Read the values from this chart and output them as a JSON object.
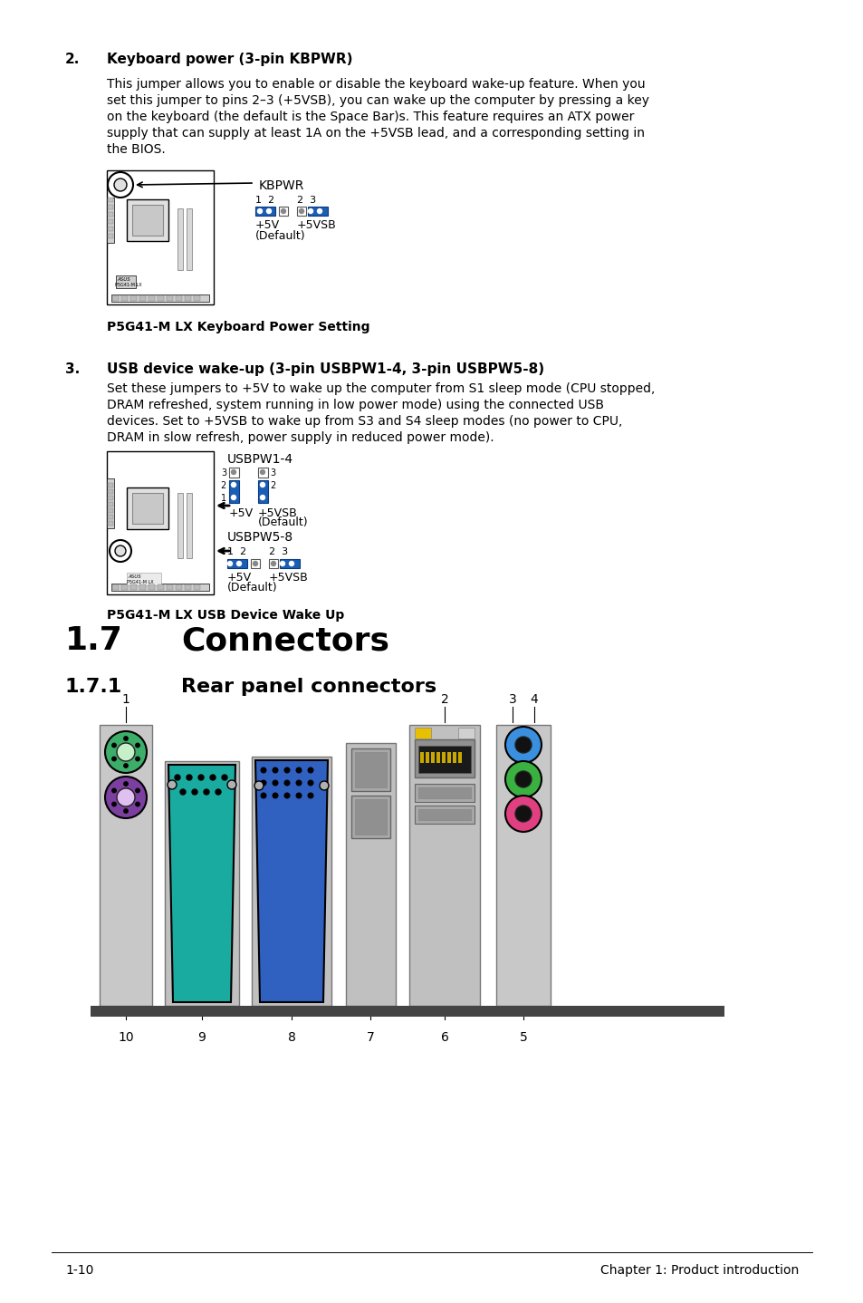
{
  "bg_color": "#ffffff",
  "section2_num": "2.",
  "section2_title": "Keyboard power (3-pin KBPWR)",
  "section2_body1": "This jumper allows you to enable or disable the keyboard wake-up feature. When you",
  "section2_body2": "set this jumper to pins 2–3 (+5VSB), you can wake up the computer by pressing a key",
  "section2_body3": "on the keyboard (the default is the Space Bar)s. This feature requires an ATX power",
  "section2_body4": "supply that can supply at least 1A on the +5VSB lead, and a corresponding setting in",
  "section2_body5": "the BIOS.",
  "section2_caption": "P5G41-M LX Keyboard Power Setting",
  "section3_num": "3.",
  "section3_title": "USB device wake-up (3-pin USBPW1-4, 3-pin USBPW5-8)",
  "section3_body1": "Set these jumpers to +5V to wake up the computer from S1 sleep mode (CPU stopped,",
  "section3_body2": "DRAM refreshed, system running in low power mode) using the connected USB",
  "section3_body3": "devices. Set to +5VSB to wake up from S3 and S4 sleep modes (no power to CPU,",
  "section3_body4": "DRAM in slow refresh, power supply in reduced power mode).",
  "section3_caption": "P5G41-M LX USB Device Wake Up",
  "section17_num": "1.7",
  "section17_title": "Connectors",
  "section171_num": "1.7.1",
  "section171_title": "Rear panel connectors",
  "footer_left": "1-10",
  "footer_right": "Chapter 1: Product introduction",
  "blue_jumper": "#1a5fb4",
  "ps2_green": "#3dae6a",
  "ps2_purple": "#7b3fa0",
  "db9_teal": "#1aaba0",
  "vga_blue": "#3060c0",
  "audio_blue": "#3a8fdf",
  "audio_green": "#3ab040",
  "audio_pink": "#e04080"
}
